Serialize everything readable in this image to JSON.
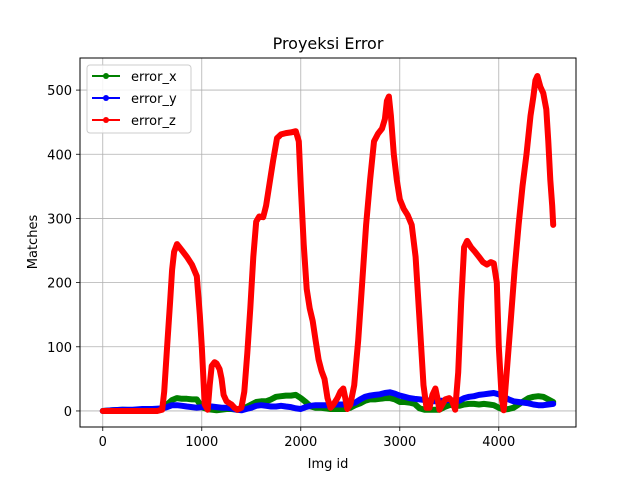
{
  "chart_data": {
    "type": "line",
    "title": "Proyeksi Error",
    "xlabel": "Img id",
    "ylabel": "Matches",
    "xlim": [
      -230,
      4780
    ],
    "ylim": [
      -25,
      550
    ],
    "xticks": [
      0,
      1000,
      2000,
      3000,
      4000
    ],
    "yticks": [
      0,
      100,
      200,
      300,
      400,
      500
    ],
    "grid": true,
    "legend_position": "top-left",
    "series": [
      {
        "name": "error_x",
        "color": "#008000",
        "points": [
          [
            0,
            0
          ],
          [
            100,
            1
          ],
          [
            200,
            2
          ],
          [
            300,
            1
          ],
          [
            400,
            2
          ],
          [
            500,
            2
          ],
          [
            600,
            3
          ],
          [
            650,
            10
          ],
          [
            700,
            17
          ],
          [
            750,
            20
          ],
          [
            800,
            19
          ],
          [
            850,
            19
          ],
          [
            900,
            18
          ],
          [
            950,
            18
          ],
          [
            1000,
            6
          ],
          [
            1050,
            3
          ],
          [
            1100,
            2
          ],
          [
            1150,
            1
          ],
          [
            1200,
            2
          ],
          [
            1250,
            3
          ],
          [
            1300,
            3
          ],
          [
            1350,
            2
          ],
          [
            1400,
            2
          ],
          [
            1450,
            6
          ],
          [
            1500,
            10
          ],
          [
            1550,
            14
          ],
          [
            1600,
            15
          ],
          [
            1650,
            15
          ],
          [
            1700,
            18
          ],
          [
            1750,
            22
          ],
          [
            1800,
            23
          ],
          [
            1850,
            24
          ],
          [
            1900,
            24
          ],
          [
            1950,
            25
          ],
          [
            2000,
            20
          ],
          [
            2050,
            14
          ],
          [
            2100,
            7
          ],
          [
            2150,
            5
          ],
          [
            2200,
            5
          ],
          [
            2250,
            4
          ],
          [
            2300,
            3
          ],
          [
            2350,
            3
          ],
          [
            2400,
            3
          ],
          [
            2450,
            3
          ],
          [
            2500,
            5
          ],
          [
            2550,
            9
          ],
          [
            2600,
            12
          ],
          [
            2650,
            16
          ],
          [
            2700,
            18
          ],
          [
            2750,
            18
          ],
          [
            2800,
            19
          ],
          [
            2850,
            20
          ],
          [
            2900,
            20
          ],
          [
            2950,
            18
          ],
          [
            3000,
            14
          ],
          [
            3050,
            14
          ],
          [
            3100,
            13
          ],
          [
            3150,
            11
          ],
          [
            3200,
            4
          ],
          [
            3250,
            2
          ],
          [
            3300,
            2
          ],
          [
            3350,
            2
          ],
          [
            3400,
            2
          ],
          [
            3450,
            6
          ],
          [
            3500,
            9
          ],
          [
            3550,
            10
          ],
          [
            3600,
            8
          ],
          [
            3650,
            10
          ],
          [
            3700,
            11
          ],
          [
            3750,
            11
          ],
          [
            3800,
            10
          ],
          [
            3850,
            11
          ],
          [
            3900,
            10
          ],
          [
            3950,
            9
          ],
          [
            4000,
            5
          ],
          [
            4050,
            2
          ],
          [
            4100,
            3
          ],
          [
            4150,
            5
          ],
          [
            4200,
            10
          ],
          [
            4250,
            15
          ],
          [
            4300,
            20
          ],
          [
            4350,
            22
          ],
          [
            4400,
            23
          ],
          [
            4450,
            22
          ],
          [
            4500,
            18
          ],
          [
            4550,
            14
          ]
        ]
      },
      {
        "name": "error_y",
        "color": "#0000ff",
        "points": [
          [
            0,
            0
          ],
          [
            100,
            1
          ],
          [
            200,
            2
          ],
          [
            300,
            2
          ],
          [
            400,
            3
          ],
          [
            500,
            3
          ],
          [
            600,
            4
          ],
          [
            650,
            6
          ],
          [
            700,
            9
          ],
          [
            750,
            9
          ],
          [
            800,
            8
          ],
          [
            850,
            7
          ],
          [
            900,
            6
          ],
          [
            950,
            5
          ],
          [
            1000,
            6
          ],
          [
            1050,
            7
          ],
          [
            1100,
            7
          ],
          [
            1150,
            6
          ],
          [
            1200,
            5
          ],
          [
            1250,
            5
          ],
          [
            1300,
            4
          ],
          [
            1350,
            2
          ],
          [
            1400,
            1
          ],
          [
            1450,
            3
          ],
          [
            1500,
            5
          ],
          [
            1550,
            8
          ],
          [
            1600,
            9
          ],
          [
            1650,
            8
          ],
          [
            1700,
            7
          ],
          [
            1750,
            7
          ],
          [
            1800,
            8
          ],
          [
            1850,
            7
          ],
          [
            1900,
            6
          ],
          [
            1950,
            4
          ],
          [
            2000,
            3
          ],
          [
            2050,
            6
          ],
          [
            2100,
            8
          ],
          [
            2150,
            9
          ],
          [
            2200,
            9
          ],
          [
            2250,
            9
          ],
          [
            2300,
            9
          ],
          [
            2350,
            10
          ],
          [
            2400,
            10
          ],
          [
            2450,
            10
          ],
          [
            2500,
            11
          ],
          [
            2550,
            13
          ],
          [
            2600,
            18
          ],
          [
            2650,
            22
          ],
          [
            2700,
            24
          ],
          [
            2750,
            25
          ],
          [
            2800,
            26
          ],
          [
            2850,
            28
          ],
          [
            2900,
            29
          ],
          [
            2950,
            27
          ],
          [
            3000,
            24
          ],
          [
            3050,
            22
          ],
          [
            3100,
            20
          ],
          [
            3150,
            19
          ],
          [
            3200,
            18
          ],
          [
            3250,
            17
          ],
          [
            3300,
            16
          ],
          [
            3350,
            15
          ],
          [
            3400,
            16
          ],
          [
            3450,
            16
          ],
          [
            3500,
            17
          ],
          [
            3550,
            16
          ],
          [
            3600,
            16
          ],
          [
            3650,
            20
          ],
          [
            3700,
            22
          ],
          [
            3750,
            23
          ],
          [
            3800,
            25
          ],
          [
            3850,
            26
          ],
          [
            3900,
            27
          ],
          [
            3950,
            28
          ],
          [
            4000,
            26
          ],
          [
            4050,
            22
          ],
          [
            4100,
            18
          ],
          [
            4150,
            15
          ],
          [
            4200,
            14
          ],
          [
            4250,
            13
          ],
          [
            4300,
            12
          ],
          [
            4350,
            10
          ],
          [
            4400,
            9
          ],
          [
            4450,
            9
          ],
          [
            4500,
            10
          ],
          [
            4550,
            11
          ]
        ]
      },
      {
        "name": "error_z",
        "color": "#ff0000",
        "points": [
          [
            0,
            0
          ],
          [
            200,
            0
          ],
          [
            400,
            0
          ],
          [
            550,
            0
          ],
          [
            600,
            2
          ],
          [
            620,
            30
          ],
          [
            650,
            100
          ],
          [
            680,
            170
          ],
          [
            700,
            220
          ],
          [
            720,
            248
          ],
          [
            750,
            260
          ],
          [
            800,
            250
          ],
          [
            850,
            240
          ],
          [
            900,
            228
          ],
          [
            950,
            210
          ],
          [
            980,
            150
          ],
          [
            1000,
            100
          ],
          [
            1030,
            10
          ],
          [
            1060,
            2
          ],
          [
            1080,
            40
          ],
          [
            1100,
            70
          ],
          [
            1130,
            76
          ],
          [
            1150,
            74
          ],
          [
            1180,
            65
          ],
          [
            1200,
            50
          ],
          [
            1220,
            25
          ],
          [
            1250,
            15
          ],
          [
            1280,
            12
          ],
          [
            1300,
            10
          ],
          [
            1330,
            5
          ],
          [
            1360,
            2
          ],
          [
            1400,
            5
          ],
          [
            1430,
            30
          ],
          [
            1460,
            90
          ],
          [
            1490,
            160
          ],
          [
            1520,
            240
          ],
          [
            1550,
            295
          ],
          [
            1580,
            303
          ],
          [
            1620,
            302
          ],
          [
            1650,
            320
          ],
          [
            1680,
            350
          ],
          [
            1720,
            390
          ],
          [
            1760,
            425
          ],
          [
            1800,
            431
          ],
          [
            1850,
            433
          ],
          [
            1900,
            434
          ],
          [
            1950,
            436
          ],
          [
            1980,
            420
          ],
          [
            2000,
            350
          ],
          [
            2030,
            260
          ],
          [
            2060,
            190
          ],
          [
            2090,
            160
          ],
          [
            2120,
            140
          ],
          [
            2150,
            110
          ],
          [
            2180,
            80
          ],
          [
            2210,
            62
          ],
          [
            2240,
            50
          ],
          [
            2270,
            20
          ],
          [
            2300,
            5
          ],
          [
            2330,
            10
          ],
          [
            2370,
            20
          ],
          [
            2400,
            30
          ],
          [
            2430,
            35
          ],
          [
            2450,
            20
          ],
          [
            2470,
            3
          ],
          [
            2500,
            10
          ],
          [
            2540,
            40
          ],
          [
            2580,
            110
          ],
          [
            2620,
            200
          ],
          [
            2660,
            290
          ],
          [
            2700,
            360
          ],
          [
            2740,
            420
          ],
          [
            2780,
            432
          ],
          [
            2820,
            440
          ],
          [
            2850,
            455
          ],
          [
            2870,
            483
          ],
          [
            2890,
            490
          ],
          [
            2910,
            460
          ],
          [
            2940,
            400
          ],
          [
            2970,
            360
          ],
          [
            3000,
            330
          ],
          [
            3040,
            315
          ],
          [
            3080,
            305
          ],
          [
            3120,
            290
          ],
          [
            3160,
            240
          ],
          [
            3200,
            140
          ],
          [
            3240,
            40
          ],
          [
            3270,
            5
          ],
          [
            3300,
            5
          ],
          [
            3330,
            25
          ],
          [
            3360,
            35
          ],
          [
            3380,
            20
          ],
          [
            3400,
            2
          ],
          [
            3430,
            10
          ],
          [
            3460,
            18
          ],
          [
            3500,
            20
          ],
          [
            3530,
            15
          ],
          [
            3560,
            2
          ],
          [
            3590,
            60
          ],
          [
            3620,
            170
          ],
          [
            3650,
            255
          ],
          [
            3680,
            265
          ],
          [
            3720,
            255
          ],
          [
            3760,
            248
          ],
          [
            3800,
            240
          ],
          [
            3840,
            232
          ],
          [
            3880,
            228
          ],
          [
            3920,
            232
          ],
          [
            3950,
            230
          ],
          [
            3980,
            200
          ],
          [
            4000,
            100
          ],
          [
            4030,
            20
          ],
          [
            4050,
            1
          ],
          [
            4080,
            60
          ],
          [
            4120,
            140
          ],
          [
            4160,
            220
          ],
          [
            4200,
            290
          ],
          [
            4240,
            350
          ],
          [
            4280,
            400
          ],
          [
            4320,
            460
          ],
          [
            4350,
            490
          ],
          [
            4370,
            515
          ],
          [
            4390,
            522
          ],
          [
            4420,
            505
          ],
          [
            4450,
            495
          ],
          [
            4480,
            470
          ],
          [
            4500,
            420
          ],
          [
            4520,
            360
          ],
          [
            4540,
            320
          ],
          [
            4550,
            290
          ]
        ]
      }
    ]
  }
}
